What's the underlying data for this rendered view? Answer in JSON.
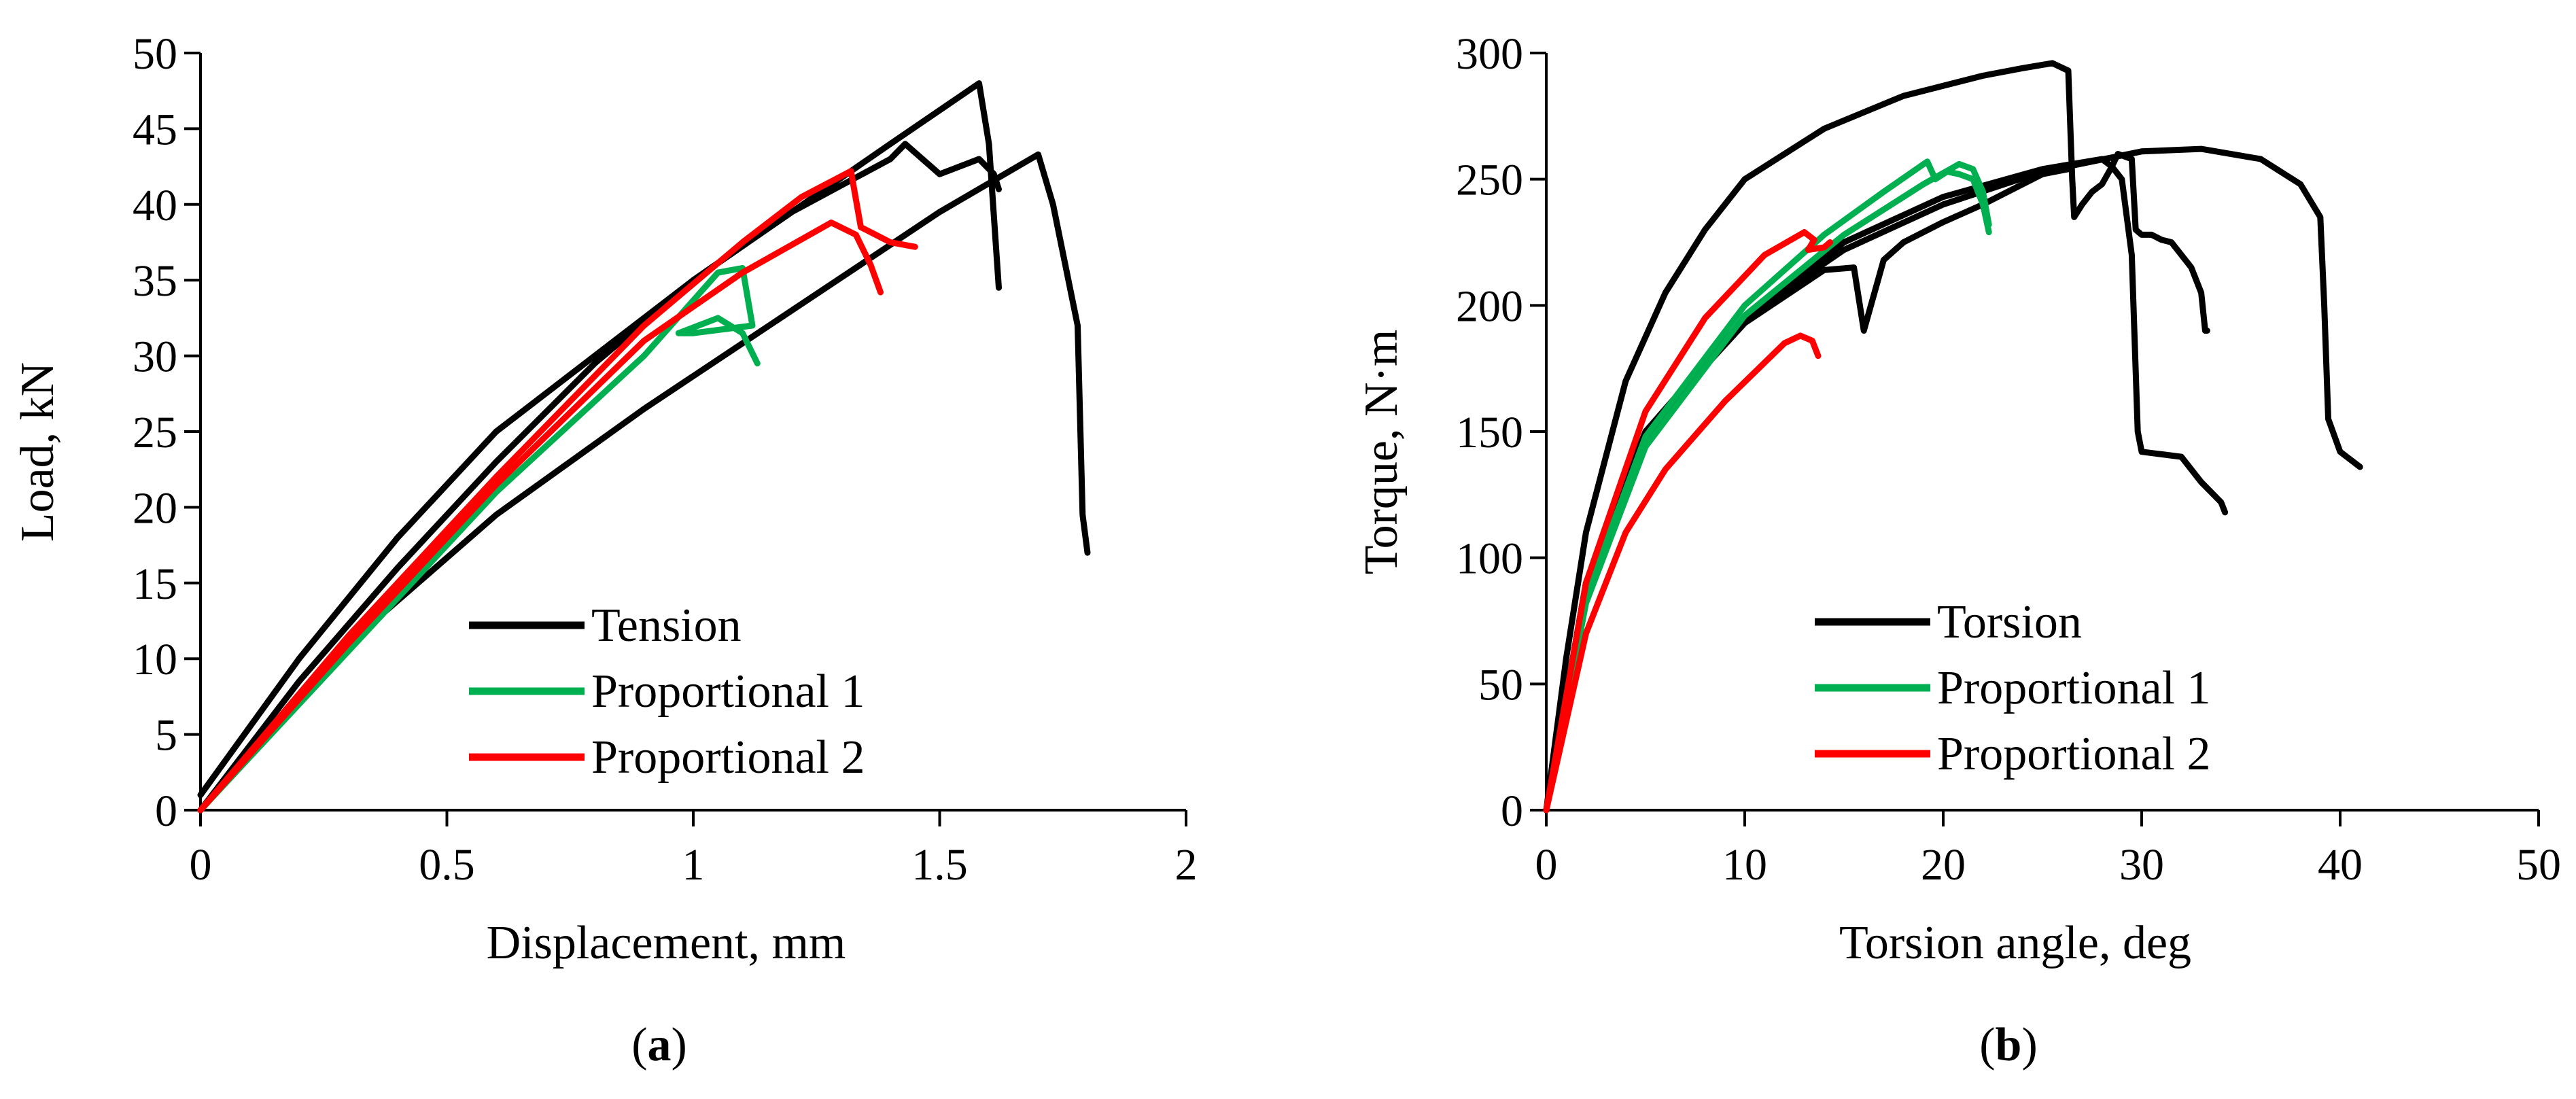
{
  "chart_data": [
    {
      "id": "a",
      "type": "line",
      "caption": {
        "open": "(",
        "label": "a",
        "close": ")"
      },
      "xlabel": "Displacement, mm",
      "ylabel": "Load, kN",
      "xlim": [
        0,
        2
      ],
      "ylim": [
        0,
        50
      ],
      "xticks": [
        0,
        0.5,
        1,
        1.5,
        2
      ],
      "xtick_labels": [
        "0",
        "0.5",
        "1",
        "1.5",
        "2"
      ],
      "yticks": [
        0,
        5,
        10,
        15,
        20,
        25,
        30,
        35,
        40,
        45,
        50
      ],
      "ytick_labels": [
        "0",
        "5",
        "10",
        "15",
        "20",
        "25",
        "30",
        "35",
        "40",
        "45",
        "50"
      ],
      "legend_position": "bottom-center",
      "legend": [
        {
          "label": "Tension",
          "color": "#000000"
        },
        {
          "label": "Proportional 1",
          "color": "#00b050"
        },
        {
          "label": "Proportional 2",
          "color": "#ff0000"
        }
      ],
      "series": [
        {
          "name": "Tension",
          "color": "#000000",
          "x": [
            0,
            0.2,
            0.4,
            0.6,
            0.8,
            1.0,
            1.2,
            1.4,
            1.58,
            1.6,
            1.62
          ],
          "y": [
            1,
            10,
            18,
            25,
            30,
            35,
            39.5,
            44,
            48,
            44,
            34.5
          ]
        },
        {
          "name": "Tension",
          "color": "#000000",
          "x": [
            0,
            0.2,
            0.4,
            0.6,
            0.8,
            1.0,
            1.2,
            1.4,
            1.43,
            1.5,
            1.58,
            1.61,
            1.62
          ],
          "y": [
            0,
            8.5,
            16,
            23,
            29.5,
            35,
            39.5,
            43,
            44,
            42,
            43,
            42,
            41
          ]
        },
        {
          "name": "Tension",
          "color": "#000000",
          "x": [
            0,
            0.3,
            0.6,
            0.9,
            1.2,
            1.5,
            1.7,
            1.73,
            1.78,
            1.79,
            1.8
          ],
          "y": [
            0,
            11,
            19.5,
            26.5,
            33,
            39.5,
            43.3,
            40,
            32,
            19.5,
            17
          ]
        },
        {
          "name": "Proportional 1",
          "color": "#00b050",
          "x": [
            0,
            0.3,
            0.6,
            0.9,
            1.05,
            1.1,
            1.12,
            1.0,
            0.97,
            1.05,
            1.1,
            1.13
          ],
          "y": [
            0,
            10.5,
            21,
            30,
            35.5,
            35.8,
            32,
            31.5,
            31.5,
            32.5,
            31.5,
            29.5
          ]
        },
        {
          "name": "Proportional 2",
          "color": "#ff0000",
          "x": [
            0,
            0.3,
            0.6,
            0.9,
            1.1,
            1.22,
            1.32,
            1.34,
            1.37,
            1.4,
            1.45
          ],
          "y": [
            0,
            11.5,
            22,
            32,
            37.5,
            40.5,
            42.2,
            38.5,
            38,
            37.5,
            37.2
          ]
        },
        {
          "name": "Proportional 2",
          "color": "#ff0000",
          "x": [
            0,
            0.3,
            0.6,
            0.9,
            1.1,
            1.28,
            1.33,
            1.36,
            1.38
          ],
          "y": [
            0,
            11,
            21.5,
            31,
            35.5,
            38.8,
            38,
            36,
            34.2
          ]
        }
      ]
    },
    {
      "id": "b",
      "type": "line",
      "caption": {
        "open": "(",
        "label": "b",
        "close": ")"
      },
      "xlabel": "Torsion angle, deg",
      "ylabel": "Torque, N·m",
      "xlim": [
        0,
        50
      ],
      "ylim": [
        0,
        300
      ],
      "xticks": [
        0,
        10,
        20,
        30,
        40,
        50
      ],
      "xtick_labels": [
        "0",
        "10",
        "20",
        "30",
        "40",
        "50"
      ],
      "yticks": [
        0,
        50,
        100,
        150,
        200,
        250,
        300
      ],
      "ytick_labels": [
        "0",
        "50",
        "100",
        "150",
        "200",
        "250",
        "300"
      ],
      "legend_position": "bottom-center",
      "legend": [
        {
          "label": "Torsion",
          "color": "#000000"
        },
        {
          "label": "Proportional 1",
          "color": "#00b050"
        },
        {
          "label": "Proportional 2",
          "color": "#ff0000"
        }
      ],
      "series": [
        {
          "name": "Torsion",
          "color": "#000000",
          "x": [
            0,
            1,
            2,
            4,
            6,
            8,
            10,
            14,
            18,
            22,
            24,
            25.5,
            26.3,
            26.5,
            26.6,
            27,
            27.5,
            28,
            28.5,
            28.8,
            29.5,
            29.7,
            30,
            30.5,
            31,
            31.5,
            32.5,
            33,
            33.2,
            33.3
          ],
          "y": [
            0,
            60,
            110,
            170,
            205,
            230,
            250,
            270,
            283,
            291,
            294,
            296,
            293,
            250,
            235,
            240,
            245,
            248,
            255,
            260,
            258,
            230,
            228,
            228,
            226,
            225,
            215,
            205,
            190,
            190
          ]
        },
        {
          "name": "Torsion",
          "color": "#000000",
          "x": [
            0,
            2,
            5,
            10,
            15,
            20,
            25,
            28,
            28.5,
            29,
            29.5,
            29.8,
            30,
            31,
            32,
            33,
            34,
            34.2
          ],
          "y": [
            0,
            90,
            150,
            195,
            225,
            243,
            254,
            258,
            255,
            250,
            220,
            150,
            142,
            141,
            140,
            130,
            122,
            118
          ]
        },
        {
          "name": "Torsion",
          "color": "#000000",
          "x": [
            0,
            2,
            5,
            10,
            15,
            20,
            25,
            30,
            33,
            36,
            38,
            39,
            39.2,
            39.4,
            40,
            41
          ],
          "y": [
            0,
            88,
            148,
            195,
            222,
            240,
            253,
            261,
            262,
            258,
            248,
            235,
            200,
            155,
            142,
            136
          ]
        },
        {
          "name": "Torsion",
          "color": "#000000",
          "x": [
            0,
            2,
            5,
            10,
            14,
            15.5,
            16,
            17,
            18,
            20,
            22,
            25,
            26.3
          ],
          "y": [
            0,
            90,
            150,
            193,
            214,
            215,
            190,
            218,
            225,
            233,
            240,
            252,
            254
          ]
        },
        {
          "name": "Proportional 1",
          "color": "#00b050",
          "x": [
            0,
            2,
            5,
            10,
            14,
            17,
            19.2,
            19.6,
            20.2,
            20.8,
            21.5,
            22,
            22.3
          ],
          "y": [
            0,
            85,
            148,
            200,
            228,
            245,
            257,
            250,
            253,
            252,
            250,
            240,
            229
          ]
        },
        {
          "name": "Proportional 1",
          "color": "#00b050",
          "x": [
            0,
            2,
            5,
            10,
            15,
            19,
            20.8,
            21.5,
            22,
            22.3
          ],
          "y": [
            0,
            82,
            144,
            196,
            228,
            248,
            256,
            254,
            245,
            232
          ]
        },
        {
          "name": "Proportional 2",
          "color": "#ff0000",
          "x": [
            0,
            2,
            5,
            8,
            11,
            13,
            13.5,
            13.2,
            14.0,
            14.3
          ],
          "y": [
            0,
            90,
            158,
            195,
            220,
            229,
            226,
            222,
            223,
            225
          ]
        },
        {
          "name": "Proportional 2",
          "color": "#ff0000",
          "x": [
            0,
            2,
            4,
            6,
            9,
            12,
            12.8,
            13.4,
            13.7
          ],
          "y": [
            0,
            70,
            110,
            135,
            162,
            185,
            188,
            186,
            180
          ]
        }
      ]
    }
  ]
}
